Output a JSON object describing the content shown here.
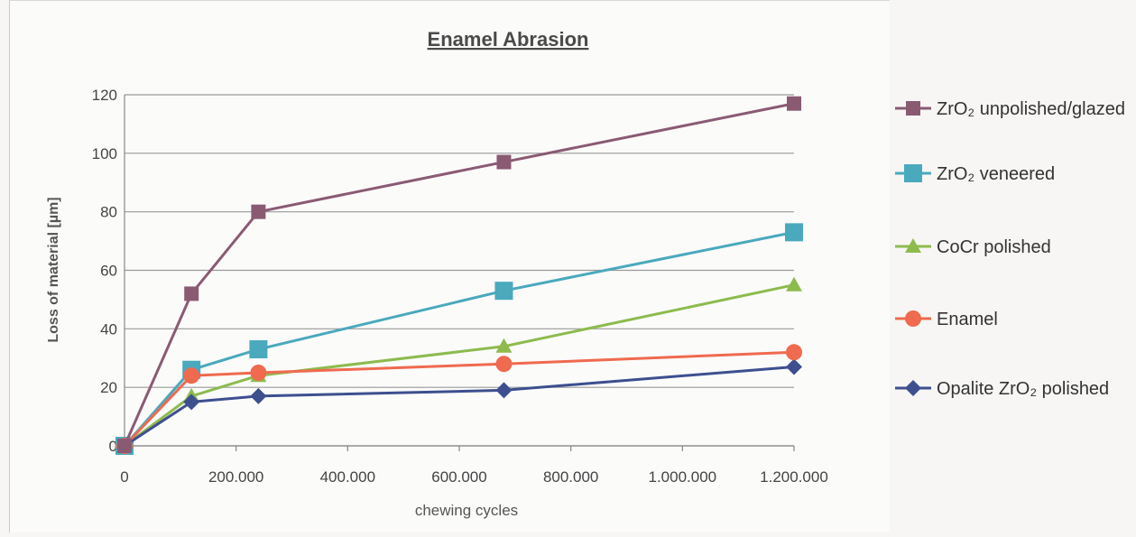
{
  "chart_data": {
    "type": "line",
    "title": "Enamel Abrasion",
    "xlabel": "chewing cycles",
    "ylabel": "Loss of material [µm]",
    "xlim": [
      0,
      1200000
    ],
    "ylim": [
      0,
      120
    ],
    "x_ticks": [
      0,
      200000,
      400000,
      600000,
      800000,
      1000000,
      1200000
    ],
    "x_tick_labels": [
      "0",
      "200.000",
      "400.000",
      "600.000",
      "800.000",
      "1.000.000",
      "1.200.000"
    ],
    "y_ticks": [
      0,
      20,
      40,
      60,
      80,
      100,
      120
    ],
    "y_tick_labels": [
      "0",
      "20",
      "40",
      "60",
      "80",
      "100",
      "120"
    ],
    "grid": "horizontal",
    "legend_position": "right",
    "x": [
      0,
      120000,
      240000,
      680000,
      1200000
    ],
    "series": [
      {
        "name": "ZrO₂ unpolished/glazed",
        "color": "#8a5a73",
        "marker": "square",
        "values": [
          0,
          52,
          80,
          97,
          117
        ]
      },
      {
        "name": "ZrO₂ veneered",
        "color": "#4aa9bd",
        "marker": "square-large",
        "values": [
          0,
          26,
          33,
          53,
          73
        ]
      },
      {
        "name": "CoCr polished",
        "color": "#8dbb4e",
        "marker": "triangle",
        "values": [
          0,
          17,
          24,
          34,
          55
        ]
      },
      {
        "name": "Enamel",
        "color": "#ef6a4f",
        "marker": "circle",
        "values": [
          0,
          24,
          25,
          28,
          32
        ]
      },
      {
        "name": "Opalite ZrO₂ polished",
        "color": "#3d4f8f",
        "marker": "diamond",
        "values": [
          0,
          15,
          17,
          19,
          27
        ]
      }
    ]
  }
}
